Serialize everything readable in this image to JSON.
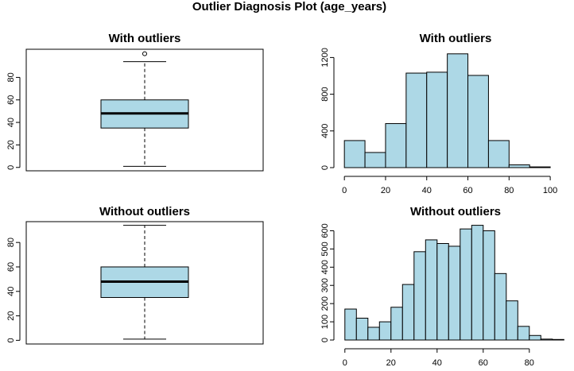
{
  "figure": {
    "title": "Outlier Diagnosis Plot (age_years)"
  },
  "colors": {
    "fill": "#add8e6",
    "stroke": "#000000",
    "background": "#ffffff"
  },
  "chart_data": [
    {
      "type": "box",
      "title": "With outliers",
      "xlabel": "",
      "ylabel": "",
      "ylim": [
        -3,
        105
      ],
      "yticks": [
        0,
        20,
        40,
        60,
        80
      ],
      "stats": {
        "whisker_low": 1,
        "q1": 35,
        "median": 48,
        "q3": 60,
        "whisker_high": 94
      },
      "outliers": [
        101
      ],
      "grid": false
    },
    {
      "type": "bar",
      "title": "With outliers",
      "xlabel": "",
      "ylabel": "",
      "bins": [
        [
          0,
          10
        ],
        [
          10,
          20
        ],
        [
          20,
          30
        ],
        [
          30,
          40
        ],
        [
          40,
          50
        ],
        [
          50,
          60
        ],
        [
          60,
          70
        ],
        [
          70,
          80
        ],
        [
          80,
          90
        ],
        [
          90,
          100
        ]
      ],
      "values": [
        295,
        165,
        480,
        1030,
        1040,
        1240,
        1005,
        295,
        30,
        8
      ],
      "xticks": [
        0,
        20,
        40,
        60,
        80,
        100
      ],
      "yticks": [
        0,
        400,
        800,
        1200
      ],
      "xlim": [
        -2,
        110
      ],
      "ylim": [
        0,
        1290
      ],
      "grid": false
    },
    {
      "type": "box",
      "title": "Without outliers",
      "xlabel": "",
      "ylabel": "",
      "ylim": [
        -3,
        97
      ],
      "yticks": [
        0,
        20,
        40,
        60,
        80
      ],
      "stats": {
        "whisker_low": 1,
        "q1": 35,
        "median": 48,
        "q3": 60,
        "whisker_high": 94
      },
      "outliers": [],
      "grid": false
    },
    {
      "type": "bar",
      "title": "Without outliers",
      "xlabel": "",
      "ylabel": "",
      "bins": [
        [
          0,
          5
        ],
        [
          5,
          10
        ],
        [
          10,
          15
        ],
        [
          15,
          20
        ],
        [
          20,
          25
        ],
        [
          25,
          30
        ],
        [
          30,
          35
        ],
        [
          35,
          40
        ],
        [
          40,
          45
        ],
        [
          45,
          50
        ],
        [
          50,
          55
        ],
        [
          55,
          60
        ],
        [
          60,
          65
        ],
        [
          65,
          70
        ],
        [
          70,
          75
        ],
        [
          75,
          80
        ],
        [
          80,
          85
        ],
        [
          85,
          90
        ],
        [
          90,
          95
        ]
      ],
      "values": [
        170,
        120,
        70,
        100,
        180,
        305,
        485,
        550,
        530,
        515,
        610,
        630,
        600,
        365,
        215,
        75,
        25,
        5,
        3
      ],
      "xticks": [
        0,
        20,
        40,
        60,
        80
      ],
      "yticks": [
        0,
        100,
        200,
        300,
        400,
        500,
        600
      ],
      "xlim": [
        -2,
        98
      ],
      "ylim": [
        0,
        650
      ],
      "grid": false
    }
  ]
}
